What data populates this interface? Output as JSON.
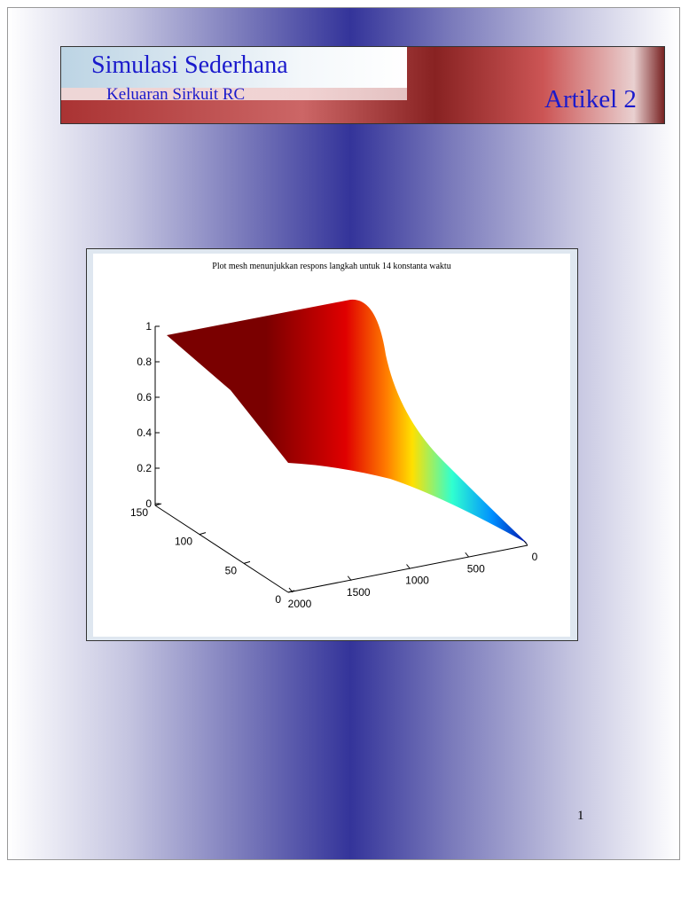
{
  "header": {
    "title": "Simulasi Sederhana",
    "subtitle": "Keluaran Sirkuit RC",
    "article": "Artikel 2"
  },
  "figure": {
    "title": "Plot mesh menunjukkan respons langkah untuk 14 konstanta waktu",
    "zlim": [
      0,
      1
    ],
    "zticks": [
      0,
      0.2,
      0.4,
      0.6,
      0.8,
      1
    ],
    "ylim": [
      0,
      150
    ],
    "yticks": [
      0,
      50,
      100,
      150
    ],
    "xlim": [
      0,
      2000
    ],
    "xticks": [
      0,
      500,
      1000,
      1500,
      2000
    ]
  },
  "page_number": "1"
}
